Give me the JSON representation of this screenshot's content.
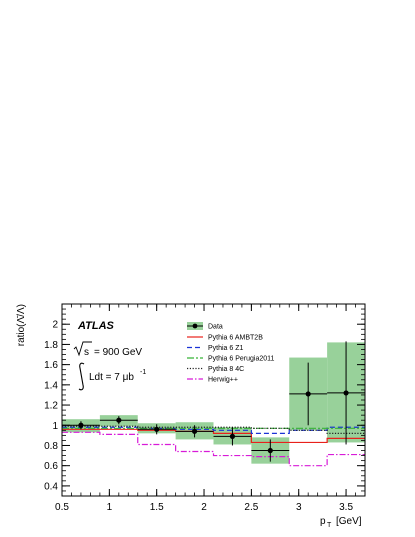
{
  "chart_data": {
    "type": "line",
    "experiment_label": "ATLAS",
    "energy_label": "= 900 GeV",
    "energy_symbol": "s",
    "lumi_label": "Ldt = 7 μb",
    "lumi_exponent": "-1",
    "xlabel": "p",
    "xlabel_sub": "T",
    "xlabel_unit": "[GeV]",
    "ylabel": "ratio(Λ̄/Λ)",
    "xlim": [
      0.5,
      3.7
    ],
    "ylim": [
      0.3,
      2.2
    ],
    "x_ticks": [
      0.5,
      1,
      1.5,
      2,
      2.5,
      3,
      3.5
    ],
    "x_tick_labels": [
      "0.5",
      "1",
      "1.5",
      "2",
      "2.5",
      "3",
      "3.5"
    ],
    "y_ticks": [
      0.4,
      0.6,
      0.8,
      1,
      1.2,
      1.4,
      1.6,
      1.8,
      2
    ],
    "y_tick_labels": [
      "0.4",
      "0.6",
      "0.8",
      "1",
      "1.2",
      "1.4",
      "1.6",
      "1.8",
      "2"
    ],
    "bin_edges": [
      0.5,
      0.9,
      1.3,
      1.7,
      2.1,
      2.5,
      2.9,
      3.3,
      3.7
    ],
    "data": {
      "name": "Data",
      "color": "#000000",
      "x": [
        0.7,
        1.1,
        1.5,
        1.9,
        2.3,
        2.7,
        3.1,
        3.5
      ],
      "y": [
        1.0,
        1.05,
        0.96,
        0.94,
        0.89,
        0.75,
        1.31,
        1.32
      ],
      "stat_err": [
        0.04,
        0.04,
        0.05,
        0.06,
        0.09,
        0.11,
        0.31,
        0.51
      ],
      "syst_low": [
        0.93,
        0.99,
        0.92,
        0.86,
        0.81,
        0.62,
        0.95,
        0.83
      ],
      "syst_high": [
        1.06,
        1.1,
        1.02,
        1.03,
        0.98,
        0.88,
        1.67,
        1.82
      ],
      "band_color": "#98d19a"
    },
    "series": [
      {
        "name": "Pythia 6 AMBT2B",
        "color": "#e8211c",
        "dash": "solid",
        "values": [
          0.96,
          0.96,
          0.95,
          0.94,
          0.92,
          0.83,
          0.83,
          0.87
        ]
      },
      {
        "name": "Pythia 6 Z1",
        "color": "#1a33d6",
        "dash": "5,3",
        "values": [
          0.98,
          0.98,
          0.97,
          0.96,
          0.95,
          0.92,
          0.95,
          0.98
        ]
      },
      {
        "name": "Pythia 6 Perugia2011",
        "color": "#37b337",
        "dash": "7,2,2,2",
        "values": [
          0.97,
          0.97,
          0.97,
          0.97,
          0.97,
          0.97,
          0.97,
          0.97
        ]
      },
      {
        "name": "Pythia 8 4C",
        "color": "#222222",
        "dash": "1.2,1.6",
        "values": [
          0.99,
          0.99,
          0.98,
          0.98,
          0.98,
          0.97,
          0.95,
          0.92
        ]
      },
      {
        "name": "Herwig++",
        "color": "#d81bd8",
        "dash": "6,2,1.5,2",
        "values": [
          0.93,
          0.91,
          0.81,
          0.74,
          0.7,
          0.69,
          0.6,
          0.71
        ]
      }
    ]
  }
}
